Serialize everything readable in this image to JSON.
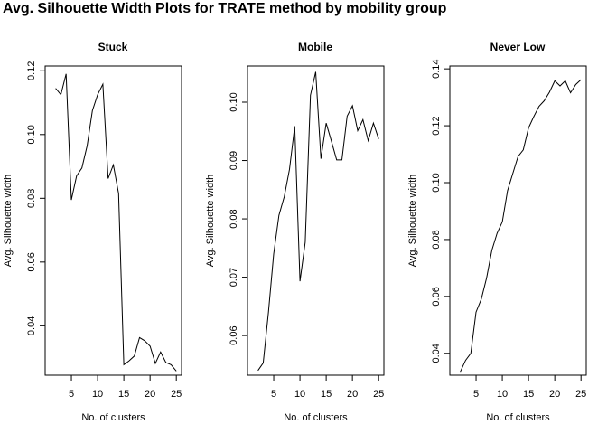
{
  "title": "Avg. Silhouette Width Plots for TRATE method by mobility group",
  "chart_data": [
    {
      "type": "line",
      "title": "Stuck",
      "xlabel": "No. of clusters",
      "ylabel": "Avg. Silhouette width",
      "x": [
        2,
        3,
        4,
        5,
        6,
        7,
        8,
        9,
        10,
        11,
        12,
        13,
        14,
        15,
        16,
        17,
        18,
        19,
        20,
        21,
        22,
        23,
        24,
        25
      ],
      "y": [
        0.1145,
        0.1125,
        0.119,
        0.0795,
        0.087,
        0.0895,
        0.0965,
        0.1075,
        0.1125,
        0.1158,
        0.0862,
        0.0905,
        0.0815,
        0.0278,
        0.029,
        0.0305,
        0.0363,
        0.0353,
        0.0336,
        0.0282,
        0.0318,
        0.0285,
        0.0278,
        0.0258
      ],
      "xlim": [
        0,
        26
      ],
      "ylim": [
        0.0245,
        0.1215
      ],
      "xticks": [
        5,
        10,
        15,
        20,
        25
      ],
      "yticks": [
        0.04,
        0.06,
        0.08,
        0.1,
        0.12
      ],
      "ytick_labels": [
        "0.04",
        "0.06",
        "0.08",
        "0.10",
        "0.12"
      ]
    },
    {
      "type": "line",
      "title": "Mobile",
      "xlabel": "No. of clusters",
      "ylabel": "Avg. Silhouette width",
      "x": [
        2,
        3,
        4,
        5,
        6,
        7,
        8,
        9,
        10,
        11,
        12,
        13,
        14,
        15,
        16,
        17,
        18,
        19,
        20,
        21,
        22,
        23,
        24,
        25
      ],
      "y": [
        0.054,
        0.0553,
        0.064,
        0.074,
        0.0806,
        0.0838,
        0.0885,
        0.0959,
        0.0693,
        0.076,
        0.1012,
        0.1052,
        0.0903,
        0.0964,
        0.0933,
        0.0901,
        0.0901,
        0.0976,
        0.0994,
        0.0951,
        0.097,
        0.0934,
        0.0964,
        0.0937
      ],
      "xlim": [
        0,
        26
      ],
      "ylim": [
        0.0532,
        0.1062
      ],
      "xticks": [
        5,
        10,
        15,
        20,
        25
      ],
      "yticks": [
        0.06,
        0.07,
        0.08,
        0.09,
        0.1
      ],
      "ytick_labels": [
        "0.06",
        "0.07",
        "0.08",
        "0.09",
        "0.10"
      ]
    },
    {
      "type": "line",
      "title": "Never Low",
      "xlabel": "No. of clusters",
      "ylabel": "Avg. Silhouette width",
      "x": [
        2,
        3,
        4,
        5,
        6,
        7,
        8,
        9,
        10,
        11,
        12,
        13,
        14,
        15,
        16,
        17,
        18,
        19,
        20,
        21,
        22,
        23,
        24,
        25
      ],
      "y": [
        0.0335,
        0.0375,
        0.04,
        0.0545,
        0.059,
        0.0665,
        0.0762,
        0.0822,
        0.0862,
        0.0972,
        0.1032,
        0.1092,
        0.1115,
        0.1192,
        0.1232,
        0.1268,
        0.1288,
        0.1318,
        0.1358,
        0.134,
        0.1358,
        0.1316,
        0.1345,
        0.1362
      ],
      "xlim": [
        0,
        26
      ],
      "ylim": [
        0.0323,
        0.141
      ],
      "xticks": [
        5,
        10,
        15,
        20,
        25
      ],
      "yticks": [
        0.04,
        0.06,
        0.08,
        0.1,
        0.12,
        0.14
      ],
      "ytick_labels": [
        "0.04",
        "0.06",
        "0.08",
        "0.10",
        "0.12",
        "0.14"
      ]
    }
  ]
}
